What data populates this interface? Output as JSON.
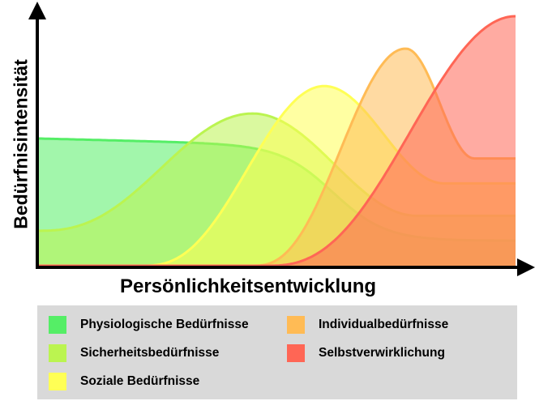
{
  "chart_data": {
    "type": "area",
    "title": "",
    "xlabel": "Persönlichkeitsentwicklung",
    "ylabel": "Bedürfnisintensität",
    "ticks": false,
    "grid": false,
    "legend_position": "bottom",
    "series": [
      {
        "name": "Physiologische Bedürfnisse",
        "color": "#55ee66",
        "peak_position": 0.05,
        "peak_intensity": 0.51,
        "end_intensity": 0.1
      },
      {
        "name": "Sicherheitsbedürfnisse",
        "color": "#bbf450",
        "peak_position": 0.45,
        "peak_intensity": 0.61,
        "end_intensity": 0.2
      },
      {
        "name": "Soziale Bedürfnisse",
        "color": "#ffff55",
        "peak_position": 0.6,
        "peak_intensity": 0.72,
        "end_intensity": 0.33
      },
      {
        "name": "Individualbedürfnisse",
        "color": "#ffbb55",
        "peak_position": 0.77,
        "peak_intensity": 0.87,
        "end_intensity": 0.43
      },
      {
        "name": "Selbstverwirklichung",
        "color": "#ff6655",
        "peak_position": 1.0,
        "peak_intensity": 1.0,
        "end_intensity": 1.0
      }
    ]
  }
}
